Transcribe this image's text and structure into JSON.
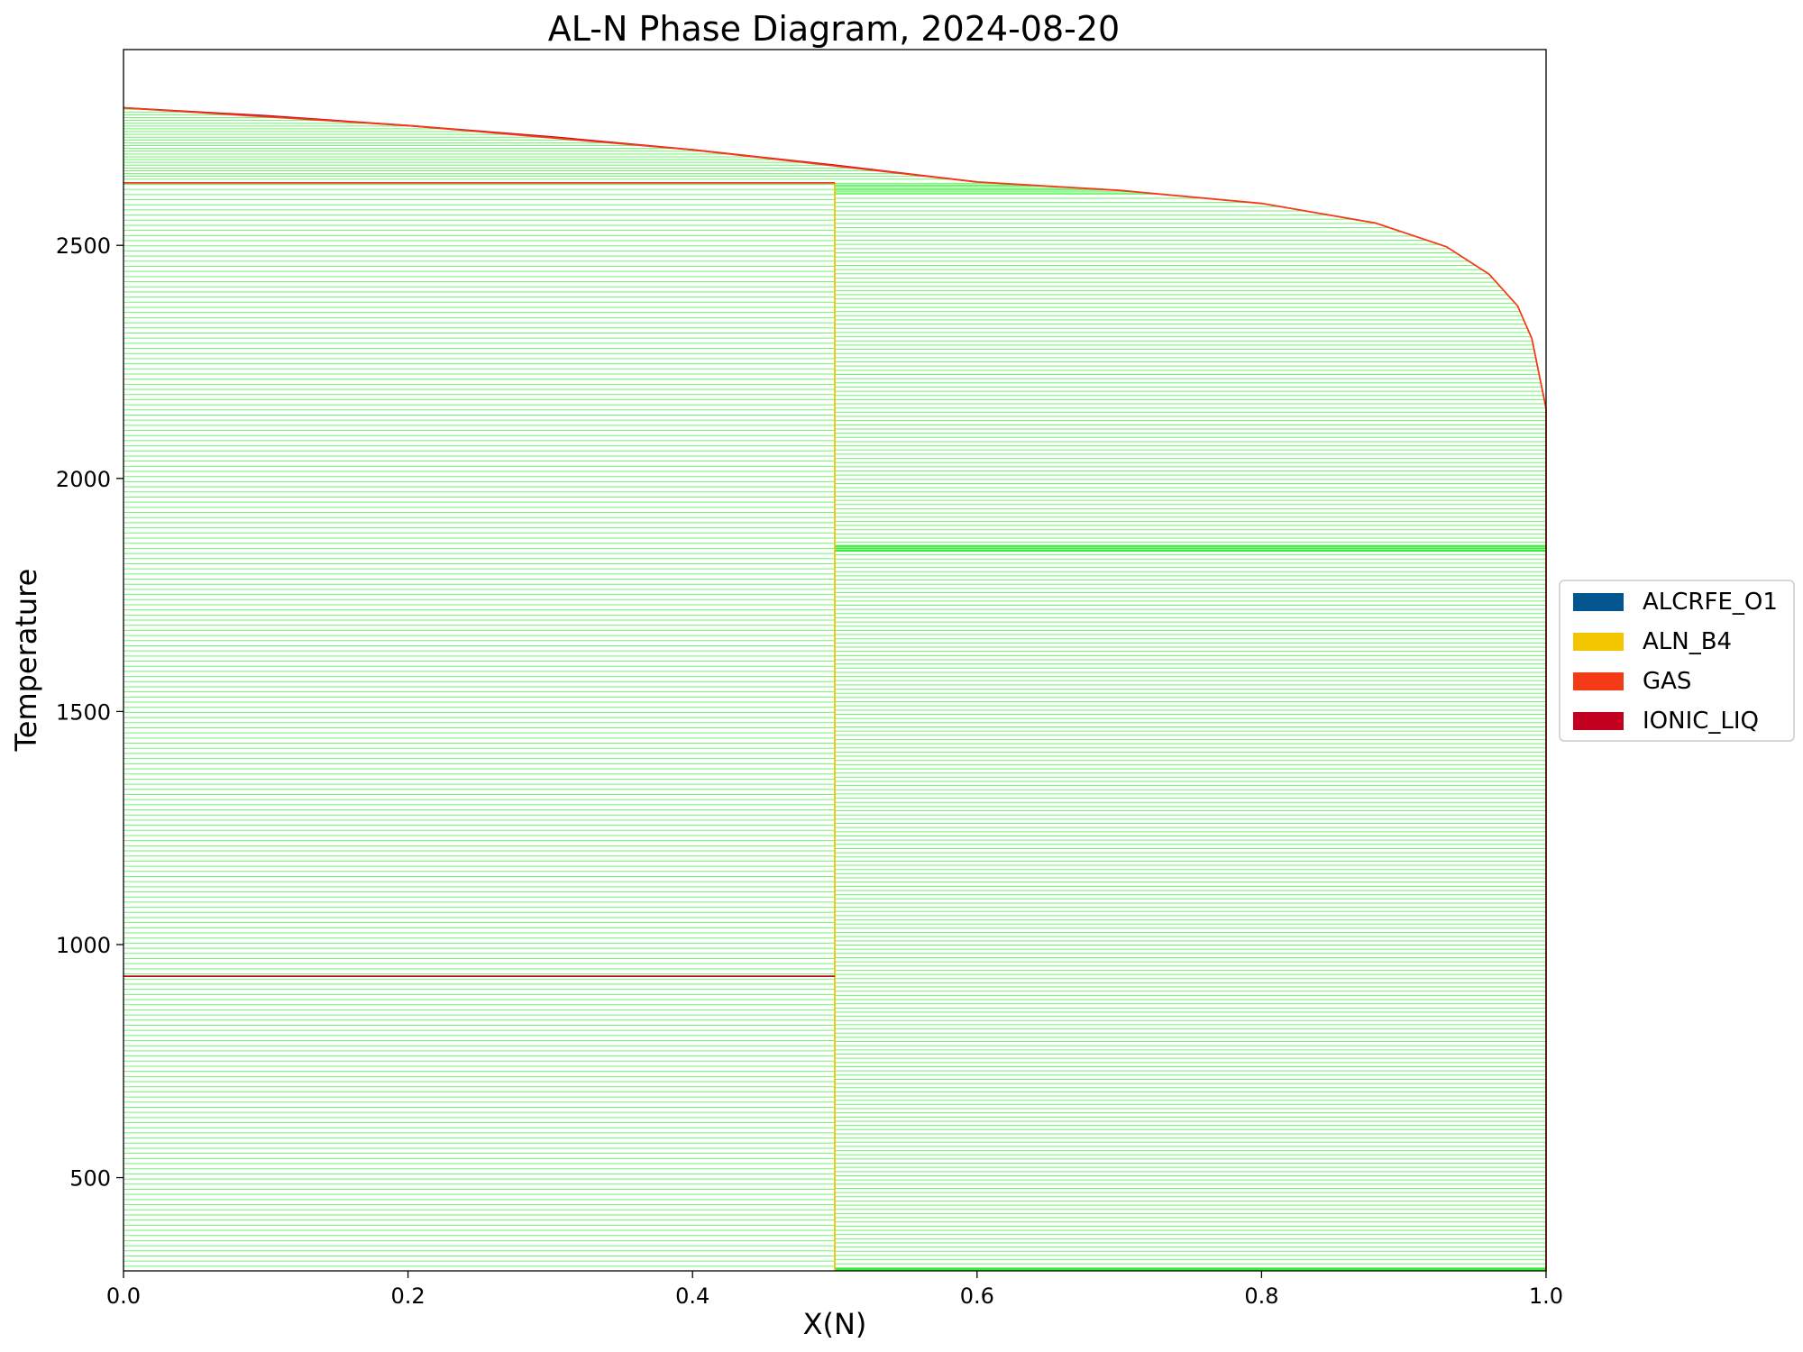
{
  "chart_data": {
    "type": "line",
    "title": "AL-N Phase Diagram, 2024-08-20",
    "xlabel": "X(N)",
    "ylabel": "Temperature",
    "xlim": [
      0.0,
      1.0
    ],
    "ylim": [
      300,
      2920
    ],
    "x_ticks": [
      "0.0",
      "0.2",
      "0.4",
      "0.6",
      "0.8",
      "1.0"
    ],
    "y_ticks": [
      "500",
      "1000",
      "1500",
      "2000",
      "2500"
    ],
    "grid": false,
    "legend_position": "center-right",
    "legend": [
      {
        "name": "ALCRFE_O1",
        "color": "#03558f"
      },
      {
        "name": "ALN_B4",
        "color": "#f2c500"
      },
      {
        "name": "GAS",
        "color": "#f43a16"
      },
      {
        "name": "IONIC_LIQ",
        "color": "#c3001f"
      }
    ],
    "tieline_color": "#33ee33",
    "phase_boundaries": [
      {
        "name": "IONIC_LIQ",
        "color": "#c3001f",
        "points": [
          [
            0.0,
            2795
          ],
          [
            0.1,
            2778
          ],
          [
            0.2,
            2757
          ],
          [
            0.3,
            2733
          ],
          [
            0.4,
            2705
          ],
          [
            0.5,
            2672
          ],
          [
            0.6,
            2636
          ]
        ]
      },
      {
        "name": "GAS",
        "color": "#f43a16",
        "points": [
          [
            0.0,
            2795
          ],
          [
            0.2,
            2757
          ],
          [
            0.4,
            2705
          ],
          [
            0.6,
            2636
          ],
          [
            0.7,
            2618
          ],
          [
            0.8,
            2590
          ],
          [
            0.88,
            2548
          ],
          [
            0.93,
            2497
          ],
          [
            0.96,
            2438
          ],
          [
            0.98,
            2370
          ],
          [
            0.99,
            2300
          ],
          [
            1.0,
            2150
          ]
        ]
      },
      {
        "name": "ALN_B4",
        "color": "#f2c500",
        "points": [
          [
            0.5,
            300
          ],
          [
            0.5,
            2634
          ]
        ]
      },
      {
        "name": "GAS",
        "color": "#f43a16",
        "points": [
          [
            0.0,
            2634
          ],
          [
            0.5,
            2634
          ]
        ]
      },
      {
        "name": "IONIC_LIQ",
        "color": "#c3001f",
        "points": [
          [
            0.0,
            932
          ],
          [
            0.5,
            932
          ]
        ]
      },
      {
        "name": "GAS",
        "color": "#f43a16",
        "points": [
          [
            1.0,
            300
          ],
          [
            1.0,
            2150
          ]
        ]
      }
    ]
  }
}
